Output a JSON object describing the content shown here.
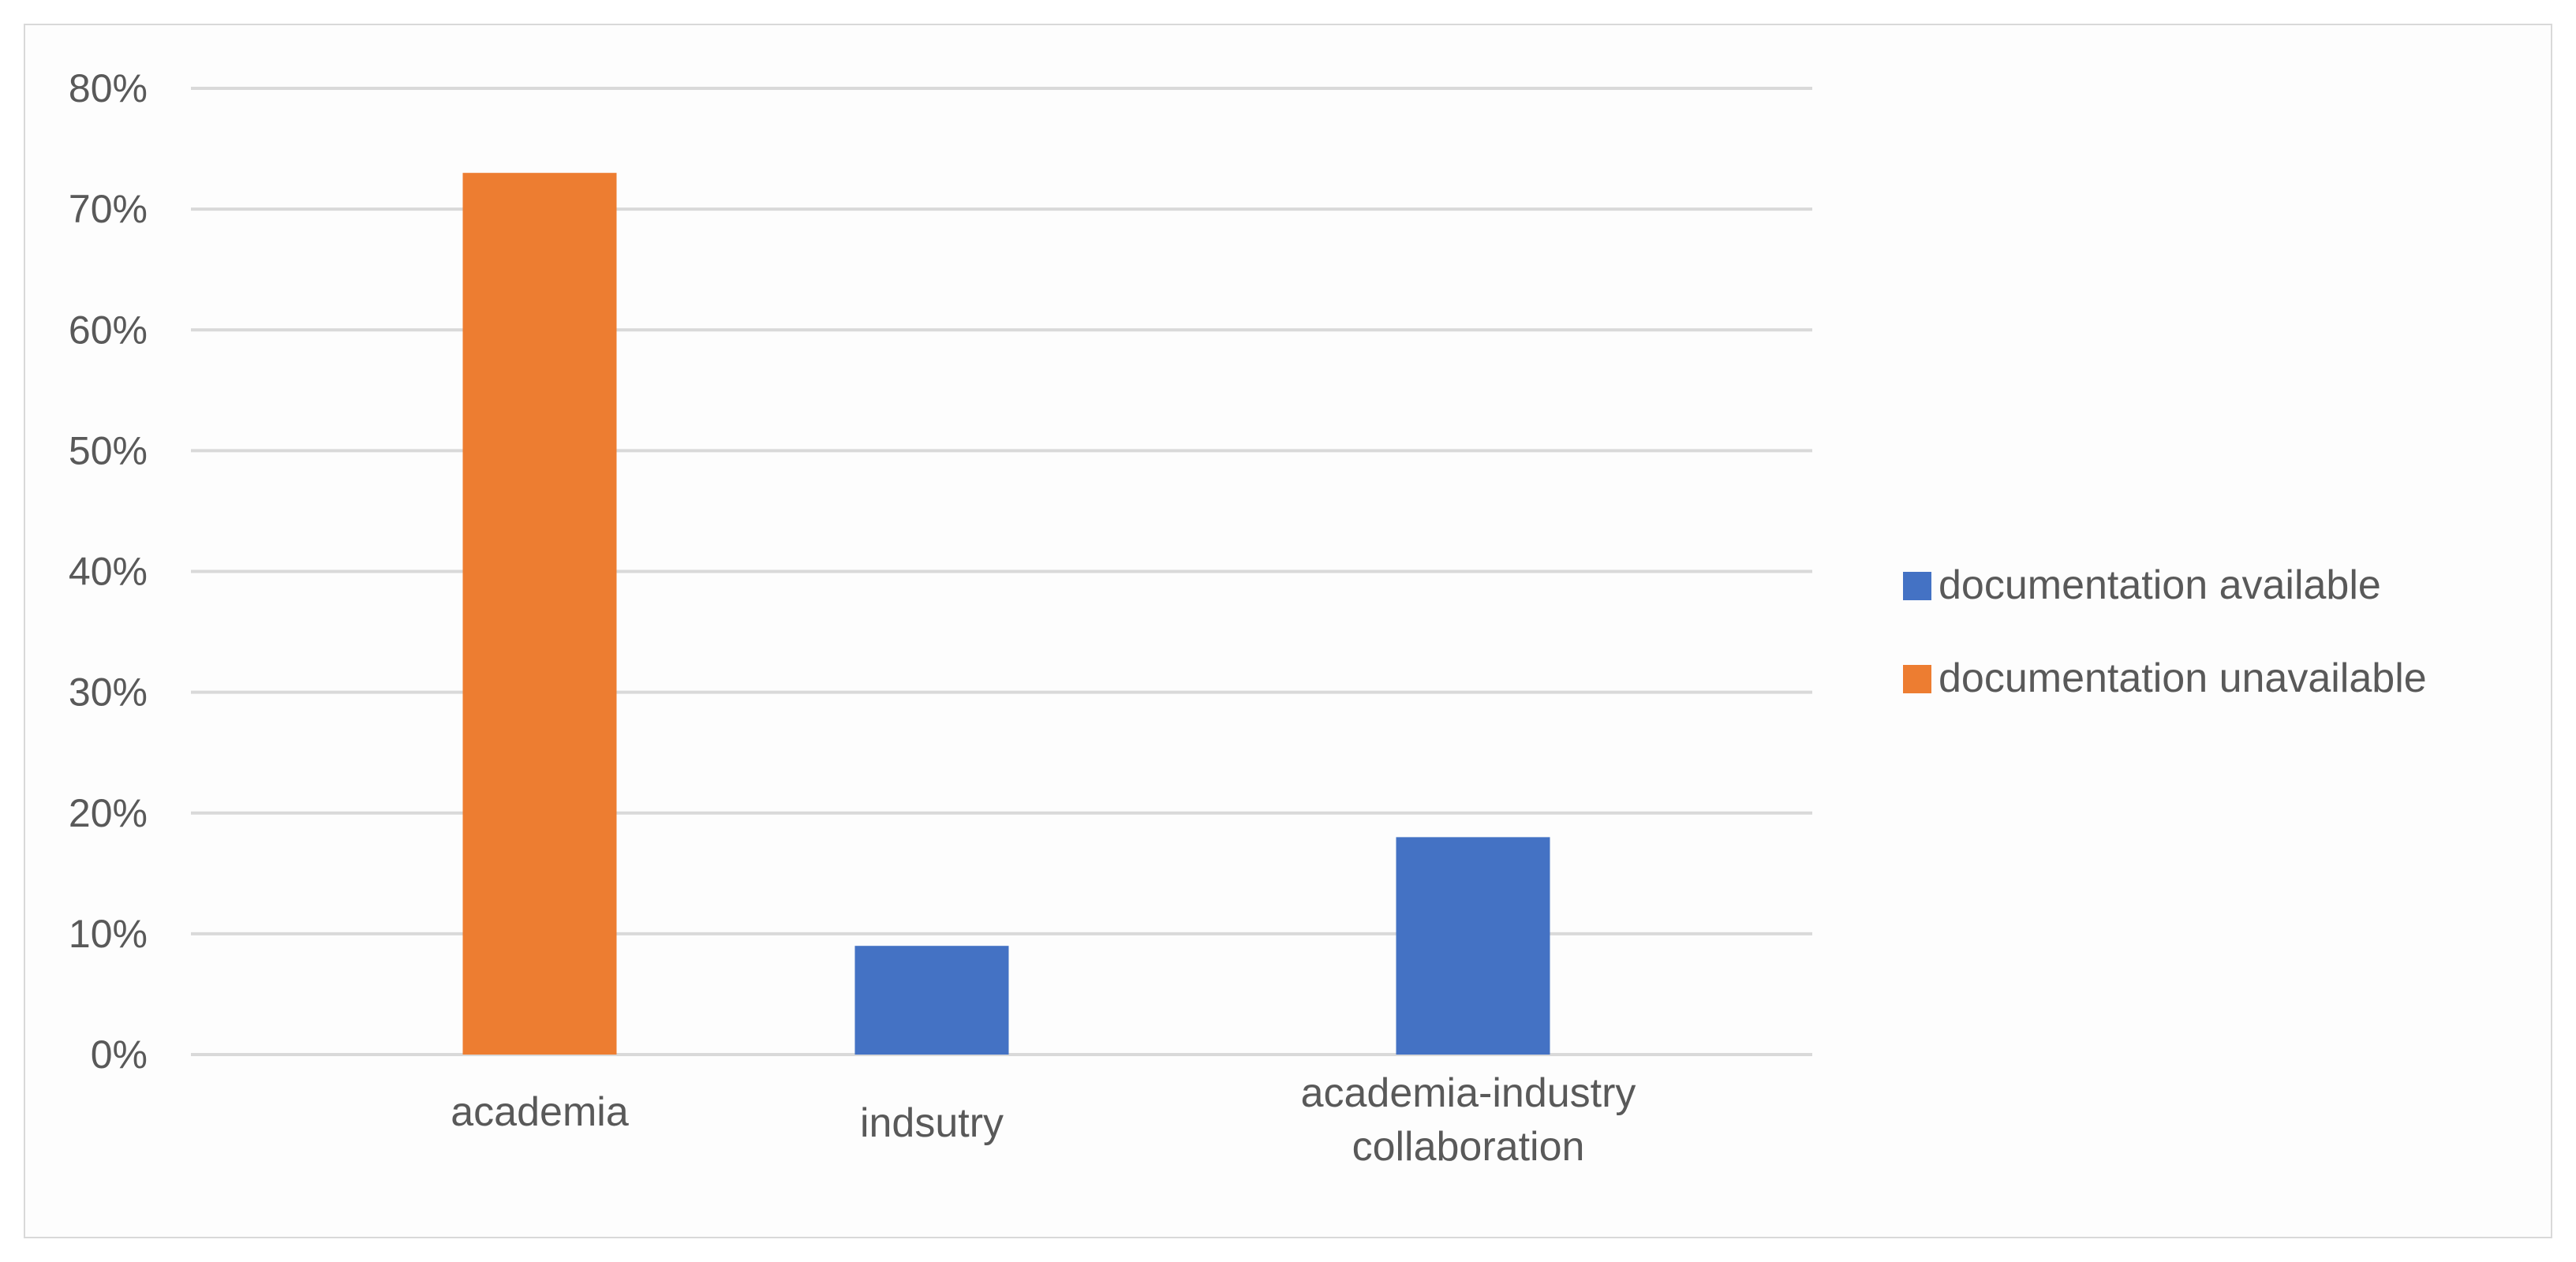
{
  "chart_data": {
    "type": "bar",
    "title": "",
    "xlabel": "",
    "ylabel": "",
    "categories": [
      [
        "academia"
      ],
      [
        "indsutry"
      ],
      [
        "academia-industry",
        "collaboration"
      ]
    ],
    "series": [
      {
        "name": "documentation available",
        "color": "#4472c4",
        "values": [
          null,
          9,
          18
        ]
      },
      {
        "name": "documentation unavailable",
        "color": "#ed7d31",
        "values": [
          73,
          null,
          null
        ]
      }
    ],
    "y_ticks": [
      "0%",
      "10%",
      "20%",
      "30%",
      "40%",
      "50%",
      "60%",
      "70%",
      "80%"
    ],
    "y_unit": "%",
    "ylim": [
      0,
      80
    ],
    "grid": true,
    "legend_position": "right",
    "colors": {
      "gridline": "#d9d9d9",
      "text": "#595959",
      "border": "#d9d9d9"
    }
  }
}
